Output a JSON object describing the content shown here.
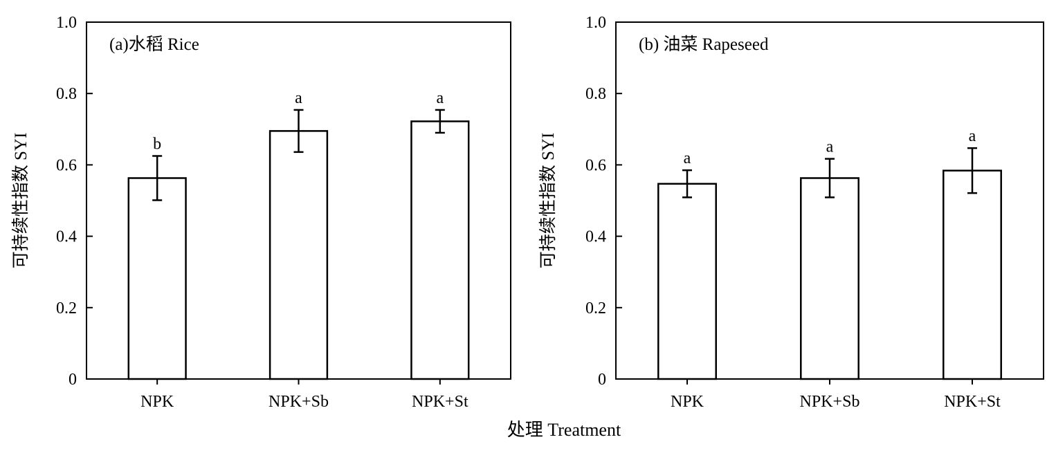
{
  "chart_data": [
    {
      "type": "bar",
      "title": "(a)水稻 Rice",
      "ylabel": "可持续性指数 SYI",
      "categories": [
        "NPK",
        "NPK+Sb",
        "NPK+St"
      ],
      "values": [
        0.563,
        0.695,
        0.722
      ],
      "errors": [
        0.062,
        0.059,
        0.032
      ],
      "significance": [
        "b",
        "a",
        "a"
      ],
      "ylim": [
        0,
        1.0
      ],
      "yticks": [
        "0",
        "0.2",
        "0.4",
        "0.6",
        "0.8",
        "1.0"
      ],
      "grid": false
    },
    {
      "type": "bar",
      "title": "(b) 油菜 Rapeseed",
      "ylabel": "可持续性指数 SYI",
      "categories": [
        "NPK",
        "NPK+Sb",
        "NPK+St"
      ],
      "values": [
        0.547,
        0.563,
        0.584
      ],
      "errors": [
        0.038,
        0.054,
        0.063
      ],
      "significance": [
        "a",
        "a",
        "a"
      ],
      "ylim": [
        0,
        1.0
      ],
      "yticks": [
        "0",
        "0.2",
        "0.4",
        "0.6",
        "0.8",
        "1.0"
      ],
      "grid": false
    }
  ],
  "xlabel": "处理 Treatment"
}
